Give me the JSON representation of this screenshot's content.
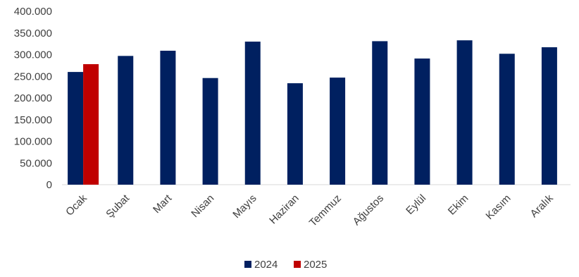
{
  "chart_data": {
    "type": "bar",
    "categories": [
      "Ocak",
      "Şubat",
      "Mart",
      "Nisan",
      "Mayıs",
      "Haziran",
      "Temmuz",
      "Ağustos",
      "Eylül",
      "Ekim",
      "Kasım",
      "Aralık"
    ],
    "series": [
      {
        "name": "2024",
        "color": "#002060",
        "values": [
          260000,
          297000,
          309000,
          246000,
          330000,
          234000,
          247000,
          331000,
          291000,
          333000,
          302000,
          317000
        ]
      },
      {
        "name": "2025",
        "color": "#c00000",
        "values": [
          278000,
          null,
          null,
          null,
          null,
          null,
          null,
          null,
          null,
          null,
          null,
          null
        ]
      }
    ],
    "yticks": [
      "400.000",
      "350.000",
      "300.000",
      "250.000",
      "200.000",
      "150.000",
      "100.000",
      "50.000",
      "0"
    ],
    "ylim": [
      0,
      400000
    ],
    "ytick_step": 50000,
    "grid": false,
    "legend_position": "bottom",
    "title": "",
    "xlabel": "",
    "ylabel": ""
  }
}
